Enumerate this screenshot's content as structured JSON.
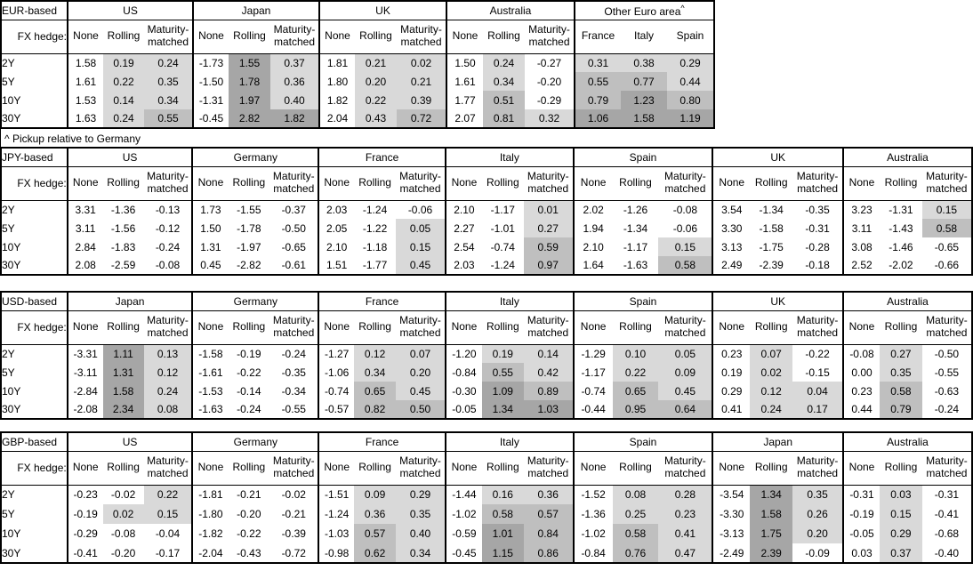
{
  "fx_hedge_label": "FX hedge:",
  "tenors": [
    "2Y",
    "5Y",
    "10Y",
    "30Y"
  ],
  "footnote": "^ Pickup relative to Germany",
  "heat": {
    "description": "Gray heat shading applied to Rolling, Maturity-matched and pickup columns by cell value",
    "colors": {
      "none": "#ffffff",
      "low": "#d9d9d9",
      "mid": "#bfbfbf",
      "high": "#a6a6a6"
    },
    "thresholds": [
      0,
      0.5,
      1.0
    ]
  },
  "tables": [
    {
      "base": "EUR-based",
      "groups": [
        {
          "name": "US",
          "sub": [
            "None",
            "Rolling",
            "Maturity-matched"
          ],
          "shade": [
            false,
            true,
            true
          ],
          "rows": [
            [
              "1.58",
              "0.19",
              "0.24"
            ],
            [
              "1.61",
              "0.22",
              "0.35"
            ],
            [
              "1.53",
              "0.14",
              "0.34"
            ],
            [
              "1.63",
              "0.24",
              "0.55"
            ]
          ]
        },
        {
          "name": "Japan",
          "sub": [
            "None",
            "Rolling",
            "Maturity-matched"
          ],
          "shade": [
            false,
            true,
            true
          ],
          "rows": [
            [
              "-1.73",
              "1.55",
              "0.37"
            ],
            [
              "-1.50",
              "1.78",
              "0.36"
            ],
            [
              "-1.31",
              "1.97",
              "0.40"
            ],
            [
              "-0.45",
              "2.82",
              "1.82"
            ]
          ]
        },
        {
          "name": "UK",
          "sub": [
            "None",
            "Rolling",
            "Maturity-matched"
          ],
          "shade": [
            false,
            true,
            true
          ],
          "rows": [
            [
              "1.81",
              "0.21",
              "0.02"
            ],
            [
              "1.80",
              "0.20",
              "0.21"
            ],
            [
              "1.82",
              "0.22",
              "0.39"
            ],
            [
              "2.04",
              "0.43",
              "0.72"
            ]
          ]
        },
        {
          "name": "Australia",
          "sub": [
            "None",
            "Rolling",
            "Maturity-matched"
          ],
          "shade": [
            false,
            true,
            true
          ],
          "rows": [
            [
              "1.50",
              "0.24",
              "-0.27"
            ],
            [
              "1.61",
              "0.34",
              "-0.20"
            ],
            [
              "1.77",
              "0.51",
              "-0.29"
            ],
            [
              "2.07",
              "0.81",
              "0.32"
            ]
          ]
        },
        {
          "name": "Other Euro area",
          "marker": "^",
          "pickup": true,
          "sub": [
            "France",
            "Italy",
            "Spain"
          ],
          "shade": [
            true,
            true,
            true
          ],
          "rows": [
            [
              "0.31",
              "0.38",
              "0.29"
            ],
            [
              "0.55",
              "0.77",
              "0.44"
            ],
            [
              "0.79",
              "1.23",
              "0.80"
            ],
            [
              "1.06",
              "1.58",
              "1.19"
            ]
          ]
        }
      ]
    },
    {
      "base": "JPY-based",
      "groups": [
        {
          "name": "US",
          "sub": [
            "None",
            "Rolling",
            "Maturity-matched"
          ],
          "shade": [
            false,
            true,
            true
          ],
          "rows": [
            [
              "3.31",
              "-1.36",
              "-0.13"
            ],
            [
              "3.11",
              "-1.56",
              "-0.12"
            ],
            [
              "2.84",
              "-1.83",
              "-0.24"
            ],
            [
              "2.08",
              "-2.59",
              "-0.08"
            ]
          ]
        },
        {
          "name": "Germany",
          "sub": [
            "None",
            "Rolling",
            "Maturity-matched"
          ],
          "shade": [
            false,
            true,
            true
          ],
          "rows": [
            [
              "1.73",
              "-1.55",
              "-0.37"
            ],
            [
              "1.50",
              "-1.78",
              "-0.50"
            ],
            [
              "1.31",
              "-1.97",
              "-0.65"
            ],
            [
              "0.45",
              "-2.82",
              "-0.61"
            ]
          ]
        },
        {
          "name": "France",
          "sub": [
            "None",
            "Rolling",
            "Maturity-matched"
          ],
          "shade": [
            false,
            true,
            true
          ],
          "rows": [
            [
              "2.03",
              "-1.24",
              "-0.06"
            ],
            [
              "2.05",
              "-1.22",
              "0.05"
            ],
            [
              "2.10",
              "-1.18",
              "0.15"
            ],
            [
              "1.51",
              "-1.77",
              "0.45"
            ]
          ]
        },
        {
          "name": "Italy",
          "sub": [
            "None",
            "Rolling",
            "Maturity-matched"
          ],
          "shade": [
            false,
            true,
            true
          ],
          "rows": [
            [
              "2.10",
              "-1.17",
              "0.01"
            ],
            [
              "2.27",
              "-1.01",
              "0.27"
            ],
            [
              "2.54",
              "-0.74",
              "0.59"
            ],
            [
              "2.03",
              "-1.24",
              "0.97"
            ]
          ]
        },
        {
          "name": "Spain",
          "sub": [
            "None",
            "Rolling",
            "Maturity-matched"
          ],
          "shade": [
            false,
            true,
            true
          ],
          "rows": [
            [
              "2.02",
              "-1.26",
              "-0.08"
            ],
            [
              "1.94",
              "-1.34",
              "-0.06"
            ],
            [
              "2.10",
              "-1.17",
              "0.15"
            ],
            [
              "1.64",
              "-1.63",
              "0.58"
            ]
          ]
        },
        {
          "name": "UK",
          "sub": [
            "None",
            "Rolling",
            "Maturity-matched"
          ],
          "shade": [
            false,
            true,
            true
          ],
          "rows": [
            [
              "3.54",
              "-1.34",
              "-0.35"
            ],
            [
              "3.30",
              "-1.58",
              "-0.31"
            ],
            [
              "3.13",
              "-1.75",
              "-0.28"
            ],
            [
              "2.49",
              "-2.39",
              "-0.18"
            ]
          ]
        },
        {
          "name": "Australia",
          "sub": [
            "None",
            "Rolling",
            "Maturity-matched"
          ],
          "shade": [
            false,
            true,
            true
          ],
          "rows": [
            [
              "3.23",
              "-1.31",
              "0.15"
            ],
            [
              "3.11",
              "-1.43",
              "0.58"
            ],
            [
              "3.08",
              "-1.46",
              "-0.65"
            ],
            [
              "2.52",
              "-2.02",
              "-0.66"
            ]
          ]
        }
      ]
    },
    {
      "base": "USD-based",
      "groups": [
        {
          "name": "Japan",
          "sub": [
            "None",
            "Rolling",
            "Maturity-matched"
          ],
          "shade": [
            false,
            true,
            true
          ],
          "rows": [
            [
              "-3.31",
              "1.11",
              "0.13"
            ],
            [
              "-3.11",
              "1.31",
              "0.12"
            ],
            [
              "-2.84",
              "1.58",
              "0.24"
            ],
            [
              "-2.08",
              "2.34",
              "0.08"
            ]
          ]
        },
        {
          "name": "Germany",
          "sub": [
            "None",
            "Rolling",
            "Maturity-matched"
          ],
          "shade": [
            false,
            true,
            true
          ],
          "rows": [
            [
              "-1.58",
              "-0.19",
              "-0.24"
            ],
            [
              "-1.61",
              "-0.22",
              "-0.35"
            ],
            [
              "-1.53",
              "-0.14",
              "-0.34"
            ],
            [
              "-1.63",
              "-0.24",
              "-0.55"
            ]
          ]
        },
        {
          "name": "France",
          "sub": [
            "None",
            "Rolling",
            "Maturity-matched"
          ],
          "shade": [
            false,
            true,
            true
          ],
          "rows": [
            [
              "-1.27",
              "0.12",
              "0.07"
            ],
            [
              "-1.06",
              "0.34",
              "0.20"
            ],
            [
              "-0.74",
              "0.65",
              "0.45"
            ],
            [
              "-0.57",
              "0.82",
              "0.50"
            ]
          ]
        },
        {
          "name": "Italy",
          "sub": [
            "None",
            "Rolling",
            "Maturity-matched"
          ],
          "shade": [
            false,
            true,
            true
          ],
          "rows": [
            [
              "-1.20",
              "0.19",
              "0.14"
            ],
            [
              "-0.84",
              "0.55",
              "0.42"
            ],
            [
              "-0.30",
              "1.09",
              "0.89"
            ],
            [
              "-0.05",
              "1.34",
              "1.03"
            ]
          ]
        },
        {
          "name": "Spain",
          "sub": [
            "None",
            "Rolling",
            "Maturity-matched"
          ],
          "shade": [
            false,
            true,
            true
          ],
          "rows": [
            [
              "-1.29",
              "0.10",
              "0.05"
            ],
            [
              "-1.17",
              "0.22",
              "0.09"
            ],
            [
              "-0.74",
              "0.65",
              "0.45"
            ],
            [
              "-0.44",
              "0.95",
              "0.64"
            ]
          ]
        },
        {
          "name": "UK",
          "sub": [
            "None",
            "Rolling",
            "Maturity-matched"
          ],
          "shade": [
            false,
            true,
            true
          ],
          "rows": [
            [
              "0.23",
              "0.07",
              "-0.22"
            ],
            [
              "0.19",
              "0.02",
              "-0.15"
            ],
            [
              "0.29",
              "0.12",
              "0.04"
            ],
            [
              "0.41",
              "0.24",
              "0.17"
            ]
          ]
        },
        {
          "name": "Australia",
          "sub": [
            "None",
            "Rolling",
            "Maturity-matched"
          ],
          "shade": [
            false,
            true,
            true
          ],
          "rows": [
            [
              "-0.08",
              "0.27",
              "-0.50"
            ],
            [
              "0.00",
              "0.35",
              "-0.55"
            ],
            [
              "0.23",
              "0.58",
              "-0.63"
            ],
            [
              "0.44",
              "0.79",
              "-0.24"
            ]
          ]
        }
      ]
    },
    {
      "base": "GBP-based",
      "groups": [
        {
          "name": "US",
          "sub": [
            "None",
            "Rolling",
            "Maturity-matched"
          ],
          "shade": [
            false,
            true,
            true
          ],
          "rows": [
            [
              "-0.23",
              "-0.02",
              "0.22"
            ],
            [
              "-0.19",
              "0.02",
              "0.15"
            ],
            [
              "-0.29",
              "-0.08",
              "-0.04"
            ],
            [
              "-0.41",
              "-0.20",
              "-0.17"
            ]
          ]
        },
        {
          "name": "Germany",
          "sub": [
            "None",
            "Rolling",
            "Maturity-matched"
          ],
          "shade": [
            false,
            true,
            true
          ],
          "rows": [
            [
              "-1.81",
              "-0.21",
              "-0.02"
            ],
            [
              "-1.80",
              "-0.20",
              "-0.21"
            ],
            [
              "-1.82",
              "-0.22",
              "-0.39"
            ],
            [
              "-2.04",
              "-0.43",
              "-0.72"
            ]
          ]
        },
        {
          "name": "France",
          "sub": [
            "None",
            "Rolling",
            "Maturity-matched"
          ],
          "shade": [
            false,
            true,
            true
          ],
          "rows": [
            [
              "-1.51",
              "0.09",
              "0.29"
            ],
            [
              "-1.24",
              "0.36",
              "0.35"
            ],
            [
              "-1.03",
              "0.57",
              "0.40"
            ],
            [
              "-0.98",
              "0.62",
              "0.34"
            ]
          ]
        },
        {
          "name": "Italy",
          "sub": [
            "None",
            "Rolling",
            "Maturity-matched"
          ],
          "shade": [
            false,
            true,
            true
          ],
          "rows": [
            [
              "-1.44",
              "0.16",
              "0.36"
            ],
            [
              "-1.02",
              "0.58",
              "0.57"
            ],
            [
              "-0.59",
              "1.01",
              "0.84"
            ],
            [
              "-0.45",
              "1.15",
              "0.86"
            ]
          ]
        },
        {
          "name": "Spain",
          "sub": [
            "None",
            "Rolling",
            "Maturity-matched"
          ],
          "shade": [
            false,
            true,
            true
          ],
          "rows": [
            [
              "-1.52",
              "0.08",
              "0.28"
            ],
            [
              "-1.36",
              "0.25",
              "0.23"
            ],
            [
              "-1.02",
              "0.58",
              "0.41"
            ],
            [
              "-0.84",
              "0.76",
              "0.47"
            ]
          ]
        },
        {
          "name": "Japan",
          "sub": [
            "None",
            "Rolling",
            "Maturity-matched"
          ],
          "shade": [
            false,
            true,
            true
          ],
          "rows": [
            [
              "-3.54",
              "1.34",
              "0.35"
            ],
            [
              "-3.30",
              "1.58",
              "0.26"
            ],
            [
              "-3.13",
              "1.75",
              "0.20"
            ],
            [
              "-2.49",
              "2.39",
              "-0.09"
            ]
          ]
        },
        {
          "name": "Australia",
          "sub": [
            "None",
            "Rolling",
            "Maturity-matched"
          ],
          "shade": [
            false,
            true,
            true
          ],
          "rows": [
            [
              "-0.31",
              "0.03",
              "-0.31"
            ],
            [
              "-0.19",
              "0.15",
              "-0.41"
            ],
            [
              "-0.05",
              "0.29",
              "-0.68"
            ],
            [
              "0.03",
              "0.37",
              "-0.40"
            ]
          ]
        }
      ]
    }
  ]
}
